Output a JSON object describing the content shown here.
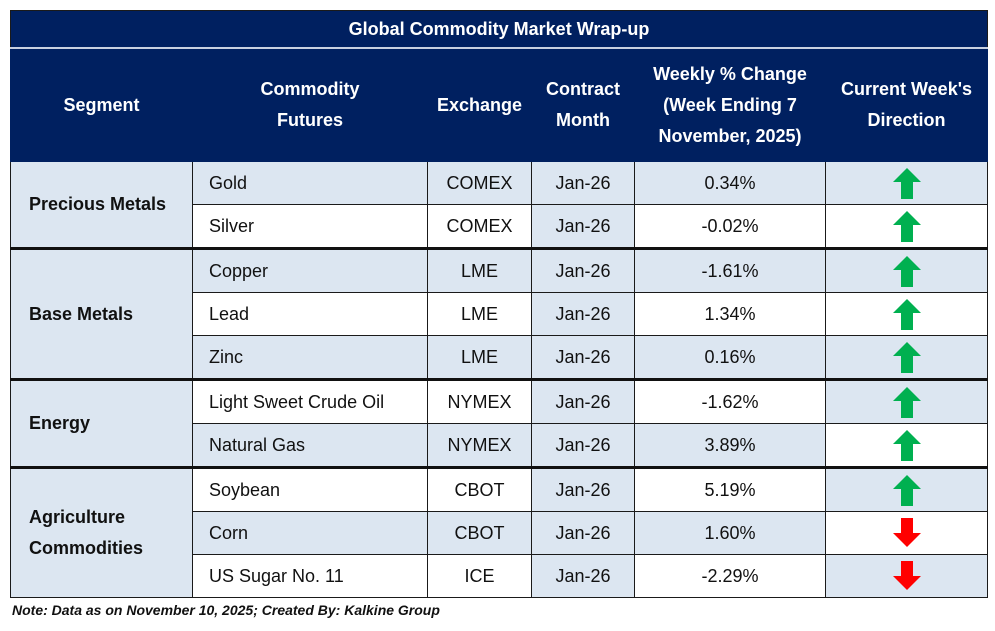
{
  "title": "Global Commodity Market Wrap-up",
  "headers": [
    "Segment",
    "Commodity Futures",
    "Exchange",
    "Contract Month",
    "Weekly % Change (Week Ending 7 November, 2025)",
    "Current Week's Direction"
  ],
  "colors": {
    "header_bg": "#002060",
    "shade": "#dce6f1",
    "up": "#00b050",
    "down": "#ff0000"
  },
  "segments": [
    {
      "name": "Precious Metals",
      "rows": [
        {
          "commodity": "Gold",
          "exchange": "COMEX",
          "contract": "Jan-26",
          "change": "0.34%",
          "direction": "up"
        },
        {
          "commodity": "Silver",
          "exchange": "COMEX",
          "contract": "Jan-26",
          "change": "-0.02%",
          "direction": "up"
        }
      ]
    },
    {
      "name": "Base Metals",
      "rows": [
        {
          "commodity": "Copper",
          "exchange": "LME",
          "contract": "Jan-26",
          "change": "-1.61%",
          "direction": "up"
        },
        {
          "commodity": "Lead",
          "exchange": "LME",
          "contract": "Jan-26",
          "change": "1.34%",
          "direction": "up"
        },
        {
          "commodity": "Zinc",
          "exchange": "LME",
          "contract": "Jan-26",
          "change": "0.16%",
          "direction": "up"
        }
      ]
    },
    {
      "name": "Energy",
      "rows": [
        {
          "commodity": "Light Sweet Crude Oil",
          "exchange": "NYMEX",
          "contract": "Jan-26",
          "change": "-1.62%",
          "direction": "up"
        },
        {
          "commodity": "Natural Gas",
          "exchange": "NYMEX",
          "contract": "Jan-26",
          "change": "3.89%",
          "direction": "up"
        }
      ]
    },
    {
      "name": "Agriculture Commodities",
      "rows": [
        {
          "commodity": "Soybean",
          "exchange": "CBOT",
          "contract": "Jan-26",
          "change": "5.19%",
          "direction": "up"
        },
        {
          "commodity": "Corn",
          "exchange": "CBOT",
          "contract": "Jan-26",
          "change": "1.60%",
          "direction": "down"
        },
        {
          "commodity": "US Sugar No. 11",
          "exchange": "ICE",
          "contract": "Jan-26",
          "change": "-2.29%",
          "direction": "down"
        }
      ]
    }
  ],
  "note": "Note: Data as on November 10, 2025; Created By: Kalkine Group"
}
